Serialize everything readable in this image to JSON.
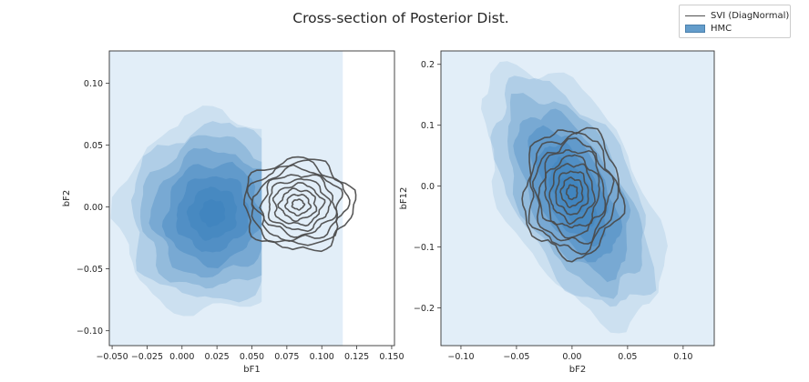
{
  "figure": {
    "title": "Cross-section of Posterior Dist."
  },
  "legend": {
    "items": [
      "SVI (DiagNormal)",
      "HMC"
    ]
  },
  "colors": {
    "hmc_fill": "#3d82bd",
    "hmc_background": "#e2eef8",
    "svi_contour": "#4a4a4a"
  },
  "chart_data": [
    {
      "type": "kde-contour",
      "xlabel": "bF1",
      "ylabel": "bF2",
      "xlim": [
        -0.052,
        0.152
      ],
      "ylim": [
        -0.112,
        0.126
      ],
      "xticks": [
        "−0.050",
        "−0.025",
        "0.000",
        "0.025",
        "0.050",
        "0.075",
        "0.100",
        "0.125",
        "0.150"
      ],
      "yticks": [
        "−0.10",
        "−0.05",
        "0.00",
        "0.05",
        "0.10"
      ],
      "xtick_values": [
        -0.05,
        -0.025,
        0,
        0.025,
        0.05,
        0.075,
        0.1,
        0.125,
        0.15
      ],
      "ytick_values": [
        -0.1,
        -0.05,
        0,
        0.05,
        0.1
      ],
      "hmc_background_xmax": 0.115,
      "series": [
        {
          "name": "HMC",
          "kind": "filled-density",
          "center": [
            0.022,
            -0.005
          ],
          "sd": [
            0.026,
            0.031
          ],
          "corr": 0.05,
          "clip_x": [
            null,
            0.057
          ],
          "levels": 8
        },
        {
          "name": "SVI (DiagNormal)",
          "kind": "contour-lines",
          "center": [
            0.083,
            0.002
          ],
          "sd": [
            0.017,
            0.016
          ],
          "corr": 0.0,
          "levels": 9
        }
      ]
    },
    {
      "type": "kde-contour",
      "xlabel": "bF2",
      "ylabel": "bF12",
      "xlim": [
        -0.118,
        0.128
      ],
      "ylim": [
        -0.262,
        0.222
      ],
      "xticks": [
        "−0.10",
        "−0.05",
        "0.00",
        "0.05",
        "0.10"
      ],
      "yticks": [
        "−0.2",
        "−0.1",
        "0.0",
        "0.1",
        "0.2"
      ],
      "xtick_values": [
        -0.1,
        -0.05,
        0,
        0.05,
        0.1
      ],
      "ytick_values": [
        -0.2,
        -0.1,
        0,
        0.1,
        0.2
      ],
      "series": [
        {
          "name": "HMC",
          "kind": "filled-density",
          "center": [
            0.001,
            -0.012
          ],
          "sd": [
            0.031,
            0.082
          ],
          "corr": -0.55,
          "levels": 8
        },
        {
          "name": "SVI (DiagNormal)",
          "kind": "contour-lines",
          "center": [
            0.0,
            -0.01
          ],
          "sd": [
            0.019,
            0.046
          ],
          "corr": 0.0,
          "levels": 9
        }
      ]
    }
  ]
}
